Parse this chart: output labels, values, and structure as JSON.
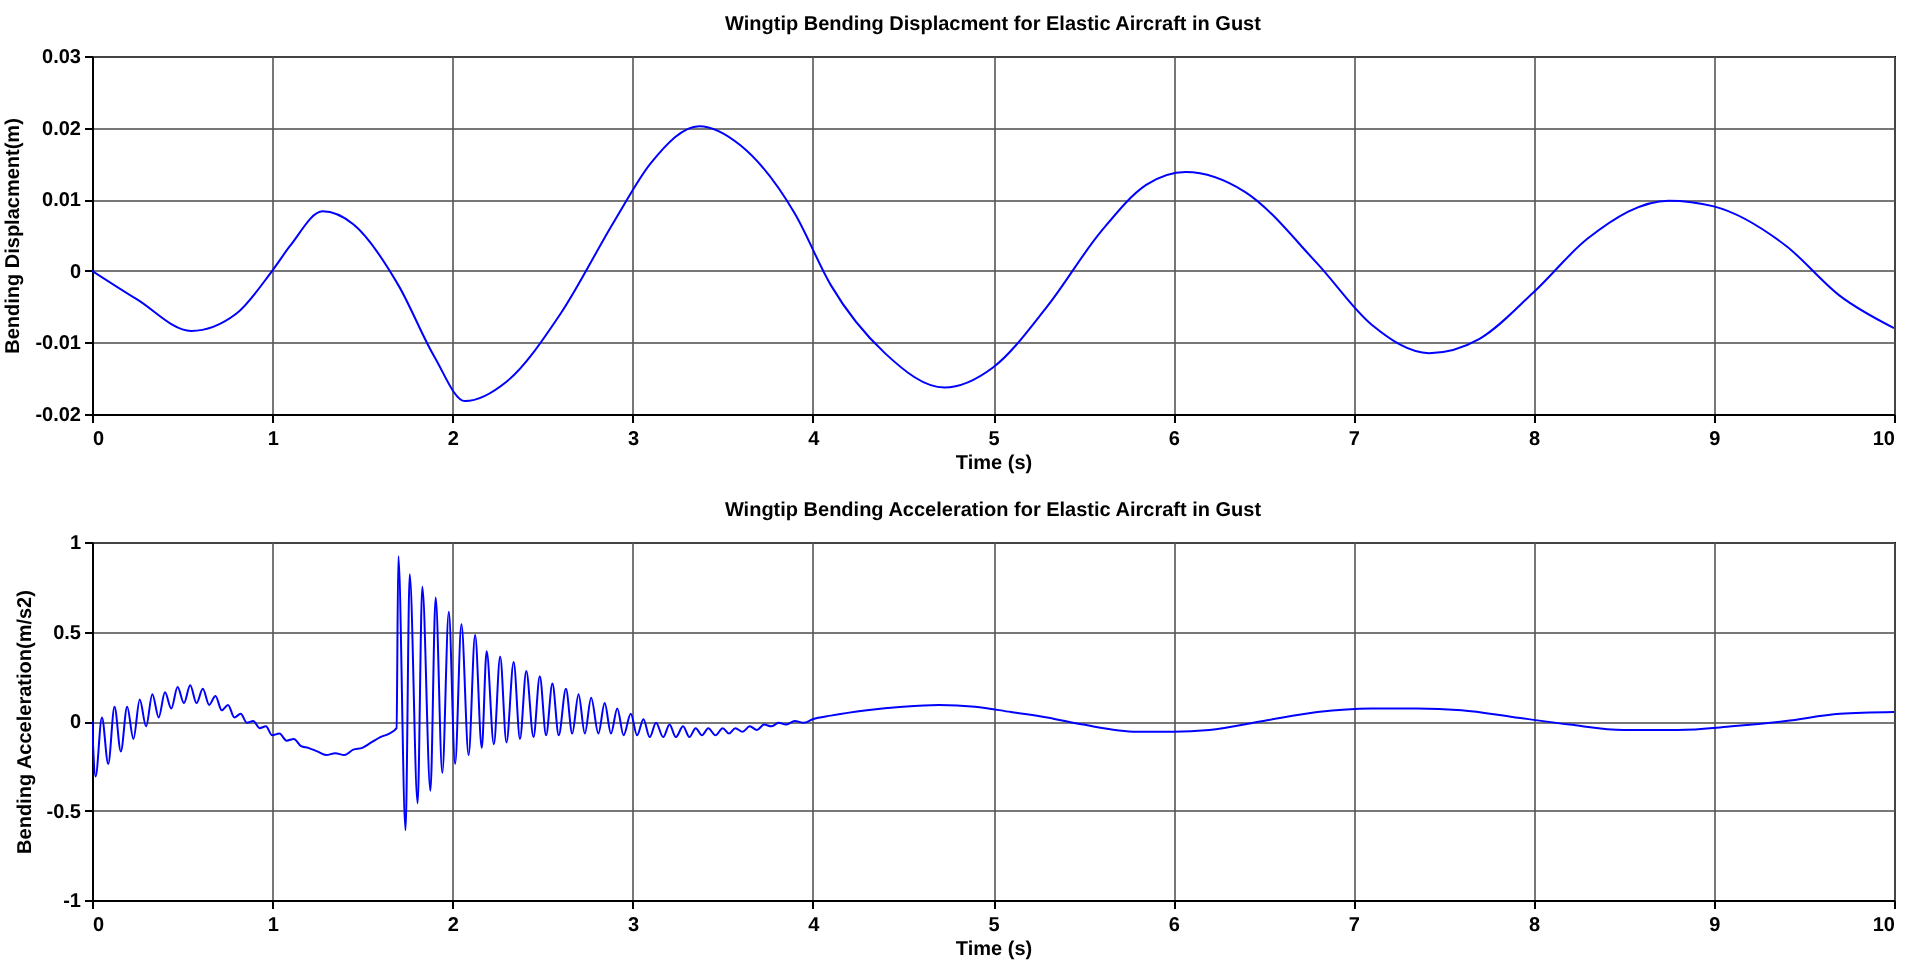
{
  "chart_data": [
    {
      "type": "line",
      "title": "Wingtip Bending Displacment for Elastic Aircraft in Gust",
      "xlabel": "Time (s)",
      "ylabel": "Bending Displacment(m)",
      "xlim": [
        0,
        10
      ],
      "xticks": [
        0,
        1,
        2,
        3,
        4,
        5,
        6,
        7,
        8,
        9,
        10
      ],
      "ylim": [
        -0.02,
        0.03
      ],
      "yticks": [
        -0.02,
        -0.01,
        0,
        0.01,
        0.02,
        0.03
      ],
      "grid": true,
      "line_style": "solid",
      "x": [
        0,
        0.25,
        0.55,
        0.8,
        1.0,
        1.1,
        1.28,
        1.45,
        1.7,
        1.9,
        2.07,
        2.3,
        2.6,
        2.9,
        3.1,
        3.37,
        3.6,
        3.9,
        4.1,
        4.4,
        4.73,
        5.0,
        5.3,
        5.6,
        5.85,
        6.07,
        6.4,
        6.8,
        7.1,
        7.42,
        7.7,
        8.0,
        8.3,
        8.75,
        9.0,
        9.4,
        9.7,
        10
      ],
      "series": [
        {
          "color": "#0000ff",
          "values": [
            0,
            -0.004,
            -0.0084,
            -0.006,
            0.0,
            0.0035,
            0.0083,
            0.0065,
            -0.002,
            -0.012,
            -0.0182,
            -0.0155,
            -0.006,
            0.007,
            0.015,
            0.0202,
            0.0175,
            0.008,
            -0.002,
            -0.0115,
            -0.0163,
            -0.0135,
            -0.005,
            0.0055,
            0.012,
            0.0138,
            0.011,
            0.001,
            -0.0075,
            -0.0115,
            -0.0095,
            -0.003,
            0.0045,
            0.0098,
            0.009,
            0.0035,
            -0.0035,
            -0.008
          ]
        }
      ]
    },
    {
      "type": "line",
      "title": "Wingtip Bending Acceleration for Elastic Aircraft in Gust",
      "xlabel": "Time (s)",
      "ylabel": "Bending Acceleration(m/s2)",
      "xlim": [
        0,
        10
      ],
      "xticks": [
        0,
        1,
        2,
        3,
        4,
        5,
        6,
        7,
        8,
        9,
        10
      ],
      "ylim": [
        -1,
        1
      ],
      "yticks": [
        -1,
        -0.5,
        0,
        0.5,
        1
      ],
      "grid": true,
      "line_style": "solid",
      "x": [
        0,
        0.02,
        0.055,
        0.09,
        0.125,
        0.16,
        0.195,
        0.23,
        0.265,
        0.3,
        0.335,
        0.37,
        0.405,
        0.44,
        0.475,
        0.51,
        0.545,
        0.58,
        0.615,
        0.65,
        0.685,
        0.72,
        0.755,
        0.79,
        0.825,
        0.86,
        0.895,
        0.93,
        0.965,
        1.0,
        1.04,
        1.08,
        1.12,
        1.16,
        1.2,
        1.25,
        1.3,
        1.35,
        1.4,
        1.45,
        1.5,
        1.55,
        1.6,
        1.65,
        1.69,
        1.7,
        1.74,
        1.763,
        1.807,
        1.833,
        1.878,
        1.907,
        1.944,
        1.98,
        2.015,
        2.05,
        2.09,
        2.126,
        2.163,
        2.19,
        2.23,
        2.265,
        2.3,
        2.34,
        2.375,
        2.41,
        2.45,
        2.485,
        2.52,
        2.555,
        2.59,
        2.63,
        2.665,
        2.7,
        2.735,
        2.77,
        2.81,
        2.845,
        2.88,
        2.915,
        2.95,
        2.99,
        3.025,
        3.06,
        3.095,
        3.13,
        3.17,
        3.205,
        3.24,
        3.28,
        3.315,
        3.35,
        3.385,
        3.42,
        3.46,
        3.5,
        3.535,
        3.57,
        3.61,
        3.65,
        3.69,
        3.73,
        3.77,
        3.81,
        3.85,
        3.9,
        3.95,
        4.0,
        4.1,
        4.3,
        4.5,
        4.7,
        4.9,
        5.1,
        5.3,
        5.5,
        5.8,
        6.0,
        6.2,
        6.5,
        6.8,
        7.1,
        7.35,
        7.6,
        7.9,
        8.2,
        8.5,
        8.8,
        9.1,
        9.4,
        9.7,
        10
      ],
      "series": [
        {
          "color": "#0000ff",
          "values": [
            0,
            -0.31,
            0.02,
            -0.24,
            0.08,
            -0.17,
            0.08,
            -0.1,
            0.12,
            -0.03,
            0.15,
            0.02,
            0.16,
            0.07,
            0.19,
            0.1,
            0.2,
            0.1,
            0.18,
            0.09,
            0.14,
            0.06,
            0.09,
            0.02,
            0.04,
            -0.01,
            0.0,
            -0.04,
            -0.03,
            -0.08,
            -0.07,
            -0.11,
            -0.1,
            -0.14,
            -0.15,
            -0.17,
            -0.19,
            -0.18,
            -0.19,
            -0.16,
            -0.15,
            -0.12,
            -0.09,
            -0.07,
            -0.04,
            0.92,
            -0.61,
            0.82,
            -0.46,
            0.75,
            -0.39,
            0.69,
            -0.29,
            0.61,
            -0.24,
            0.54,
            -0.19,
            0.48,
            -0.15,
            0.39,
            -0.13,
            0.36,
            -0.12,
            0.33,
            -0.1,
            0.28,
            -0.09,
            0.25,
            -0.08,
            0.21,
            -0.08,
            0.18,
            -0.07,
            0.15,
            -0.07,
            0.13,
            -0.07,
            0.1,
            -0.07,
            0.07,
            -0.08,
            0.04,
            -0.08,
            0.01,
            -0.09,
            -0.01,
            -0.09,
            -0.02,
            -0.09,
            -0.03,
            -0.09,
            -0.04,
            -0.08,
            -0.04,
            -0.08,
            -0.04,
            -0.07,
            -0.04,
            -0.06,
            -0.03,
            -0.05,
            -0.02,
            -0.03,
            -0.01,
            -0.02,
            0.0,
            -0.01,
            0.01,
            0.03,
            0.06,
            0.08,
            0.09,
            0.08,
            0.05,
            0.02,
            -0.02,
            -0.06,
            -0.06,
            -0.05,
            0.0,
            0.05,
            0.07,
            0.07,
            0.06,
            0.02,
            -0.02,
            -0.05,
            -0.05,
            -0.03,
            0.0,
            0.04,
            0.05
          ]
        }
      ]
    }
  ]
}
